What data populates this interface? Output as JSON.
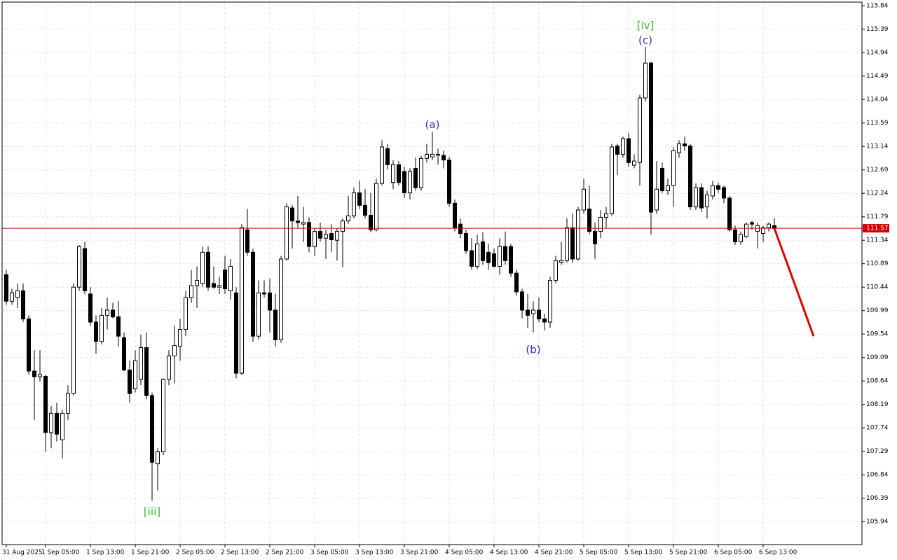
{
  "chart_data": {
    "type": "candlestick",
    "categories": [
      "31 Aug 2025",
      null,
      null,
      null,
      null,
      null,
      null,
      "1 Sep 05:00",
      null,
      null,
      null,
      null,
      null,
      null,
      null,
      "1 Sep 13:00",
      null,
      null,
      null,
      null,
      null,
      null,
      null,
      "1 Sep 21:00",
      null,
      null,
      null,
      null,
      null,
      null,
      null,
      "2 Sep 05:00",
      null,
      null,
      null,
      null,
      null,
      null,
      null,
      "2 Sep 13:00",
      null,
      null,
      null,
      null,
      null,
      null,
      null,
      "2 Sep 21:00",
      null,
      null,
      null,
      null,
      null,
      null,
      null,
      "3 Sep 05:00",
      null,
      null,
      null,
      null,
      null,
      null,
      null,
      "3 Sep 13:00",
      null,
      null,
      null,
      null,
      null,
      null,
      null,
      "3 Sep 21:00",
      null,
      null,
      null,
      null,
      null,
      null,
      null,
      "4 Sep 05:00",
      null,
      null,
      null,
      null,
      null,
      null,
      null,
      "4 Sep 13:00",
      null,
      null,
      null,
      null,
      null,
      null,
      null,
      "4 Sep 21:00",
      null,
      null,
      null,
      null,
      null,
      null,
      null,
      "5 Sep 05:00",
      null,
      null,
      null,
      null,
      null,
      null,
      null,
      "5 Sep 13:00",
      null,
      null,
      null,
      null,
      null,
      null,
      null,
      "5 Sep 21:00",
      null,
      null,
      null,
      null,
      null,
      null,
      null,
      "6 Sep 05:00",
      null,
      null,
      null,
      null,
      null,
      null,
      null,
      "6 Sep 13:00",
      null,
      null
    ],
    "open": [
      110.68,
      110.17,
      110.24,
      110.37,
      109.83,
      108.83,
      108.72,
      108.73,
      107.65,
      108.02,
      107.51,
      108.02,
      108.4,
      110.44,
      111.18,
      110.31,
      109.77,
      109.4,
      109.9,
      110.0,
      109.87,
      109.47,
      108.85,
      108.49,
      108.67,
      109.28,
      108.36,
      107.05,
      107.28,
      108.67,
      109.12,
      109.3,
      109.63,
      110.24,
      110.47,
      110.51,
      111.11,
      110.51,
      110.44,
      110.77,
      110.37,
      110.33,
      108.79,
      111.54,
      111.11,
      109.5,
      110.33,
      110.33,
      110.0,
      109.43,
      110.98,
      111.96,
      111.71,
      111.65,
      111.68,
      111.22,
      111.51,
      111.38,
      111.47,
      111.34,
      111.51,
      111.71,
      111.81,
      112.25,
      112.01,
      111.82,
      111.54,
      112.43,
      113.1,
      112.45,
      112.79,
      112.66,
      112.25,
      112.72,
      112.35,
      112.91,
      112.94,
      112.97,
      112.97,
      112.88,
      112.05,
      111.65,
      111.47,
      111.14,
      110.84,
      111.31,
      111.11,
      111.08,
      110.84,
      111.22,
      111.22,
      110.71,
      110.35,
      110.0,
      109.93,
      110.0,
      109.83,
      109.77,
      110.57,
      110.92,
      110.95,
      111.58,
      110.98,
      111.92,
      111.94,
      111.51,
      111.51,
      111.78,
      111.85,
      113.15,
      112.99,
      113.29,
      112.78,
      112.83,
      114.07,
      114.74,
      111.92,
      112.72,
      112.29,
      112.39,
      113.02,
      113.19,
      113.15,
      111.98,
      112.35,
      111.98,
      112.19,
      112.39,
      112.35,
      112.15,
      111.54,
      111.31,
      111.41,
      111.68,
      111.51,
      111.47,
      111.58,
      111.62
    ],
    "high": [
      110.77,
      110.41,
      110.51,
      110.51,
      109.9,
      109.23,
      109.23,
      108.76,
      108.16,
      108.22,
      108.09,
      108.56,
      110.51,
      111.25,
      111.31,
      110.44,
      109.9,
      110.04,
      110.24,
      110.14,
      110.17,
      109.57,
      109.03,
      109.23,
      109.53,
      109.57,
      108.42,
      107.35,
      108.69,
      109.23,
      109.7,
      109.83,
      110.37,
      110.77,
      110.84,
      111.22,
      111.22,
      110.84,
      110.64,
      111.04,
      110.98,
      110.44,
      111.65,
      111.94,
      111.18,
      110.57,
      110.57,
      110.6,
      110.31,
      111.04,
      112.05,
      112.02,
      112.19,
      111.98,
      111.78,
      111.58,
      111.68,
      111.54,
      111.65,
      111.58,
      111.76,
      112.19,
      112.35,
      112.48,
      112.32,
      112.25,
      112.52,
      113.26,
      113.19,
      112.88,
      112.86,
      112.75,
      112.72,
      112.93,
      112.96,
      113.19,
      113.42,
      113.1,
      113.06,
      112.94,
      112.12,
      111.76,
      111.54,
      111.38,
      111.45,
      111.49,
      111.27,
      111.18,
      111.38,
      111.51,
      111.27,
      110.77,
      110.41,
      110.31,
      110.17,
      110.24,
      109.93,
      110.64,
      111.04,
      111.31,
      111.76,
      111.85,
      111.98,
      112.52,
      112.39,
      111.68,
      111.92,
      111.98,
      113.19,
      113.19,
      113.33,
      113.4,
      112.99,
      114.13,
      115.05,
      114.77,
      112.86,
      112.83,
      112.52,
      113.13,
      113.26,
      113.33,
      113.19,
      112.43,
      112.43,
      112.29,
      112.48,
      112.45,
      112.39,
      112.19,
      111.62,
      111.51,
      111.68,
      111.71,
      111.68,
      111.62,
      111.68,
      111.76
    ],
    "low": [
      110.1,
      110.1,
      110.04,
      109.77,
      108.76,
      107.89,
      108.63,
      107.28,
      107.35,
      107.48,
      107.15,
      107.89,
      108.36,
      110.37,
      110.31,
      109.7,
      109.16,
      109.34,
      109.63,
      109.84,
      109.3,
      108.83,
      108.22,
      108.42,
      108.56,
      108.29,
      106.34,
      106.54,
      107.22,
      108.56,
      108.59,
      109.03,
      109.5,
      110.14,
      110.04,
      110.44,
      110.37,
      110.41,
      110.31,
      110.31,
      110.2,
      108.69,
      108.75,
      111.04,
      109.39,
      109.43,
      110.24,
      109.57,
      109.3,
      109.37,
      110.95,
      111.18,
      111.58,
      111.31,
      111.11,
      111.04,
      111.31,
      110.98,
      111.11,
      110.95,
      110.82,
      111.65,
      111.76,
      111.94,
      111.76,
      111.49,
      111.51,
      112.39,
      112.7,
      112.32,
      112.39,
      112.15,
      112.12,
      112.29,
      112.29,
      112.83,
      112.88,
      112.79,
      112.72,
      111.98,
      111.51,
      111.38,
      111.08,
      110.77,
      110.79,
      110.87,
      110.77,
      110.82,
      110.68,
      110.87,
      110.64,
      110.28,
      109.84,
      109.66,
      109.57,
      109.77,
      109.61,
      109.66,
      110.51,
      110.87,
      110.91,
      110.91,
      110.95,
      111.85,
      111.45,
      110.98,
      111.38,
      111.58,
      111.81,
      112.59,
      112.92,
      112.75,
      112.72,
      112.39,
      114.0,
      111.45,
      111.85,
      112.25,
      112.21,
      111.98,
      112.92,
      113.06,
      111.92,
      111.92,
      111.88,
      111.76,
      112.12,
      112.25,
      112.05,
      111.51,
      111.25,
      111.25,
      111.38,
      111.54,
      111.18,
      111.31,
      111.51,
      111.54
    ],
    "close": [
      110.17,
      110.33,
      110.37,
      109.83,
      108.83,
      108.72,
      108.76,
      107.65,
      108.02,
      107.62,
      108.02,
      108.4,
      110.44,
      111.22,
      110.37,
      109.77,
      109.4,
      109.9,
      110.0,
      109.87,
      109.5,
      108.85,
      108.4,
      109.03,
      109.28,
      108.36,
      107.08,
      107.28,
      108.67,
      109.12,
      109.32,
      109.63,
      110.24,
      110.47,
      110.57,
      111.11,
      110.44,
      110.44,
      110.47,
      110.41,
      110.84,
      108.79,
      111.58,
      111.11,
      109.5,
      110.33,
      110.31,
      110.0,
      109.43,
      110.98,
      111.98,
      111.71,
      111.68,
      111.68,
      111.22,
      111.51,
      111.38,
      111.45,
      111.35,
      111.51,
      111.71,
      111.81,
      112.25,
      112.01,
      111.82,
      111.54,
      112.43,
      113.13,
      112.79,
      112.79,
      112.45,
      112.25,
      112.66,
      112.35,
      112.91,
      112.99,
      112.99,
      112.99,
      112.88,
      112.05,
      111.58,
      111.47,
      111.14,
      110.84,
      111.27,
      110.95,
      110.91,
      110.84,
      111.22,
      110.95,
      110.71,
      110.35,
      110.0,
      109.9,
      110.0,
      109.83,
      109.77,
      110.57,
      110.95,
      110.95,
      111.58,
      110.98,
      111.92,
      112.32,
      111.51,
      111.27,
      111.78,
      111.85,
      113.13,
      112.99,
      113.29,
      112.83,
      112.86,
      114.07,
      114.74,
      111.88,
      112.32,
      112.29,
      112.39,
      113.06,
      113.19,
      113.15,
      111.98,
      112.35,
      111.96,
      112.21,
      112.39,
      112.32,
      112.15,
      111.54,
      111.31,
      111.45,
      111.65,
      111.65,
      111.62,
      111.58,
      111.65,
      111.57
    ],
    "up_color": "#ffffff",
    "down_color": "#000000",
    "ylim": [
      105.5,
      115.91
    ],
    "yticks": [
      115.84,
      115.39,
      114.94,
      114.49,
      114.04,
      113.59,
      113.14,
      112.69,
      112.24,
      111.79,
      111.34,
      110.89,
      110.44,
      109.99,
      109.54,
      109.09,
      108.64,
      108.19,
      107.74,
      107.29,
      106.84,
      106.39,
      105.94
    ],
    "grid": true,
    "price_line": {
      "value": 111.57,
      "color": "#d00000"
    },
    "forecast": {
      "target": 109.5,
      "color": "#e00000"
    },
    "annotations": [
      {
        "text": "[iii]",
        "color": "#33bb33"
      },
      {
        "text": "(a)",
        "color": "#2233cc"
      },
      {
        "text": "(b)",
        "color": "#2233cc"
      },
      {
        "text": "[iv]",
        "color": "#33bb33"
      },
      {
        "text": "(c)",
        "color": "#2233cc"
      }
    ]
  }
}
